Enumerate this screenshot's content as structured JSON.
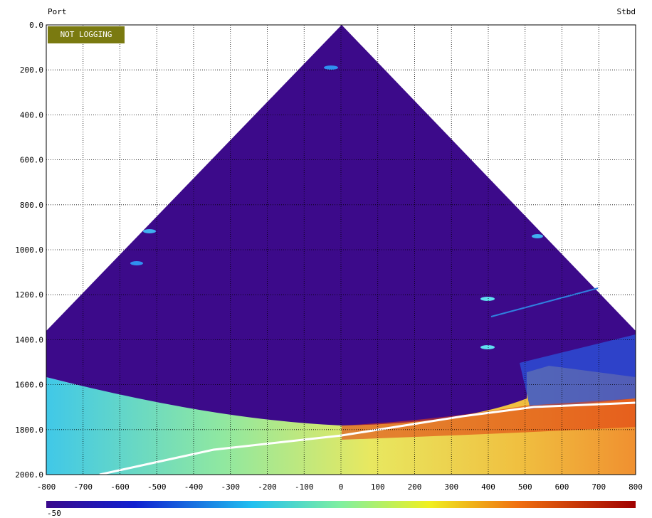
{
  "header": {
    "port": "Port",
    "stbd": "Stbd",
    "status": "NOT LOGGING"
  },
  "plot": {
    "xlim": [
      -800,
      800
    ],
    "ylim": [
      0,
      2000
    ],
    "xticks": [
      -800,
      -700,
      -600,
      -500,
      -400,
      -300,
      -200,
      -100,
      0,
      100,
      200,
      300,
      400,
      500,
      600,
      700,
      800
    ],
    "yticks": [
      {
        "value": 0,
        "label": "0.0"
      },
      {
        "value": 200,
        "label": "200.0"
      },
      {
        "value": 400,
        "label": "400.0"
      },
      {
        "value": 600,
        "label": "600.0"
      },
      {
        "value": 800,
        "label": "800.0"
      },
      {
        "value": 1000,
        "label": "1000.0"
      },
      {
        "value": 1200,
        "label": "1200.0"
      },
      {
        "value": 1400,
        "label": "1400.0"
      },
      {
        "value": 1600,
        "label": "1600.0"
      },
      {
        "value": 1800,
        "label": "1800.0"
      },
      {
        "value": 2000,
        "label": "2000.0"
      }
    ],
    "grid": true
  },
  "colorbar": {
    "min": -50
  }
}
